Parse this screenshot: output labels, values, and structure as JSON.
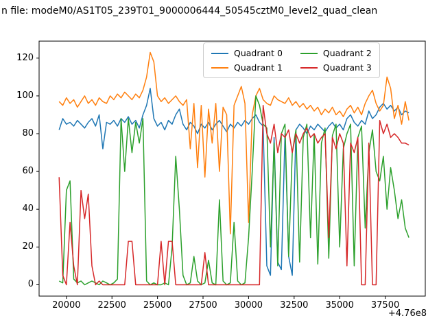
{
  "title": "n file: modeM0/AS1T05_239T01_9000006444_50545cztM0_level2_quad_clean",
  "chart_data": {
    "type": "line",
    "title": "n file: modeM0/AS1T05_239T01_9000006444_50545cztM0_level2_quad_clean",
    "xlabel": "",
    "ylabel": "",
    "x_offset_label": "+4.76e8",
    "xlim": [
      18500,
      39700
    ],
    "ylim": [
      -6,
      129
    ],
    "xticks": [
      20000,
      22500,
      25000,
      27500,
      30000,
      32500,
      35000,
      37500
    ],
    "yticks": [
      0,
      20,
      40,
      60,
      80,
      100,
      120
    ],
    "grid": false,
    "legend": {
      "position": "upper center-right",
      "columns": 2
    },
    "x": {
      "start": 19600,
      "step": 200,
      "count": 97
    },
    "series": [
      {
        "name": "Quadrant 0",
        "color": "#1f77b4",
        "values": [
          82,
          88,
          85,
          86,
          84,
          87,
          85,
          83,
          86,
          88,
          84,
          90,
          72,
          86,
          85,
          87,
          84,
          88,
          86,
          89,
          85,
          87,
          83,
          90,
          95,
          104,
          88,
          84,
          86,
          82,
          87,
          85,
          90,
          93,
          85,
          82,
          86,
          84,
          80,
          85,
          83,
          86,
          82,
          85,
          87,
          84,
          81,
          85,
          83,
          86,
          84,
          87,
          85,
          88,
          90,
          86,
          84,
          10,
          5,
          78,
          12,
          8,
          80,
          15,
          5,
          82,
          85,
          83,
          80,
          84,
          82,
          85,
          83,
          81,
          84,
          86,
          83,
          85,
          82,
          88,
          90,
          86,
          84,
          87,
          85,
          92,
          88,
          90,
          94,
          96,
          93,
          95,
          92,
          94,
          90,
          92,
          91
        ]
      },
      {
        "name": "Quadrant 1",
        "color": "#ff7f0e",
        "values": [
          97,
          95,
          99,
          96,
          98,
          94,
          97,
          100,
          96,
          98,
          95,
          99,
          97,
          96,
          100,
          98,
          101,
          99,
          102,
          100,
          98,
          101,
          99,
          103,
          110,
          123,
          118,
          100,
          97,
          99,
          96,
          98,
          100,
          97,
          95,
          98,
          72,
          96,
          62,
          95,
          57,
          93,
          75,
          96,
          60,
          94,
          90,
          27,
          95,
          100,
          105,
          96,
          33,
          90,
          100,
          104,
          98,
          96,
          95,
          100,
          98,
          97,
          96,
          99,
          95,
          97,
          94,
          96,
          93,
          95,
          92,
          94,
          90,
          93,
          91,
          94,
          90,
          92,
          89,
          93,
          95,
          91,
          94,
          90,
          96,
          100,
          103,
          96,
          92,
          95,
          110,
          104,
          88,
          95,
          85,
          97,
          87
        ]
      },
      {
        "name": "Quadrant 2",
        "color": "#2ca02c",
        "values": [
          2,
          1,
          50,
          55,
          3,
          1,
          2,
          0,
          1,
          2,
          1,
          0,
          2,
          1,
          0,
          1,
          3,
          88,
          60,
          88,
          70,
          86,
          75,
          88,
          2,
          0,
          1,
          0,
          0,
          1,
          0,
          20,
          68,
          40,
          5,
          0,
          1,
          15,
          2,
          0,
          1,
          13,
          1,
          0,
          45,
          2,
          0,
          1,
          33,
          2,
          0,
          1,
          25,
          60,
          100,
          95,
          85,
          83,
          20,
          75,
          10,
          80,
          85,
          15,
          70,
          82,
          12,
          78,
          85,
          25,
          80,
          11,
          75,
          83,
          14,
          79,
          85,
          20,
          72,
          80,
          85,
          10,
          78,
          84,
          30,
          70,
          82,
          60,
          55,
          68,
          40,
          62,
          50,
          35,
          45,
          30,
          25
        ]
      },
      {
        "name": "Quadrant 3",
        "color": "#d62728",
        "values": [
          57,
          5,
          0,
          33,
          10,
          0,
          50,
          35,
          48,
          10,
          0,
          2,
          0,
          0,
          0,
          0,
          0,
          0,
          0,
          23,
          23,
          0,
          0,
          0,
          0,
          0,
          0,
          0,
          23,
          0,
          23,
          23,
          0,
          0,
          0,
          0,
          0,
          0,
          0,
          0,
          17,
          0,
          0,
          0,
          0,
          0,
          0,
          0,
          0,
          0,
          0,
          0,
          0,
          0,
          0,
          0,
          95,
          80,
          75,
          85,
          70,
          80,
          78,
          82,
          70,
          80,
          75,
          80,
          83,
          78,
          80,
          75,
          78,
          80,
          25,
          78,
          72,
          80,
          75,
          10,
          75,
          70,
          78,
          0,
          0,
          75,
          0,
          0,
          87,
          80,
          85,
          78,
          80,
          78,
          75,
          75,
          74
        ]
      }
    ]
  }
}
